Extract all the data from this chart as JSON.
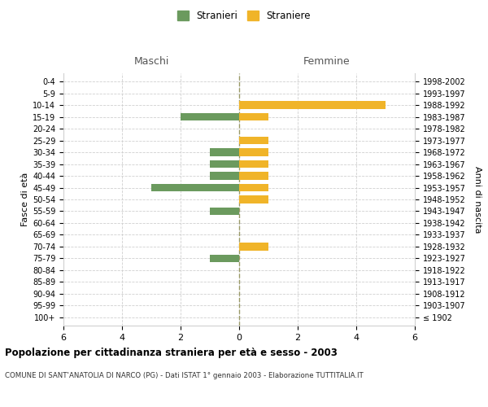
{
  "age_groups": [
    "100+",
    "95-99",
    "90-94",
    "85-89",
    "80-84",
    "75-79",
    "70-74",
    "65-69",
    "60-64",
    "55-59",
    "50-54",
    "45-49",
    "40-44",
    "35-39",
    "30-34",
    "25-29",
    "20-24",
    "15-19",
    "10-14",
    "5-9",
    "0-4"
  ],
  "birth_years": [
    "≤ 1902",
    "1903-1907",
    "1908-1912",
    "1913-1917",
    "1918-1922",
    "1923-1927",
    "1928-1932",
    "1933-1937",
    "1938-1942",
    "1943-1947",
    "1948-1952",
    "1953-1957",
    "1958-1962",
    "1963-1967",
    "1968-1972",
    "1973-1977",
    "1978-1982",
    "1983-1987",
    "1988-1992",
    "1993-1997",
    "1998-2002"
  ],
  "males": [
    0,
    0,
    0,
    0,
    0,
    1,
    0,
    0,
    0,
    1,
    0,
    3,
    1,
    1,
    1,
    0,
    0,
    2,
    0,
    0,
    0
  ],
  "females": [
    0,
    0,
    0,
    0,
    0,
    0,
    1,
    0,
    0,
    0,
    1,
    1,
    1,
    1,
    1,
    1,
    0,
    1,
    5,
    0,
    0
  ],
  "male_color": "#6b9a5e",
  "female_color": "#f0b429",
  "title_bold": "Popolazione per cittadinanza straniera per età e sesso - 2003",
  "subtitle": "COMUNE DI SANT'ANATOLIA DI NARCO (PG) - Dati ISTAT 1° gennaio 2003 - Elaborazione TUTTITALIA.IT",
  "xlabel_left": "Maschi",
  "xlabel_right": "Femmine",
  "ylabel_left": "Fasce di età",
  "ylabel_right": "Anni di nascita",
  "legend_male": "Stranieri",
  "legend_female": "Straniere",
  "xlim": 6,
  "background_color": "#ffffff",
  "grid_color": "#d0d0d0"
}
